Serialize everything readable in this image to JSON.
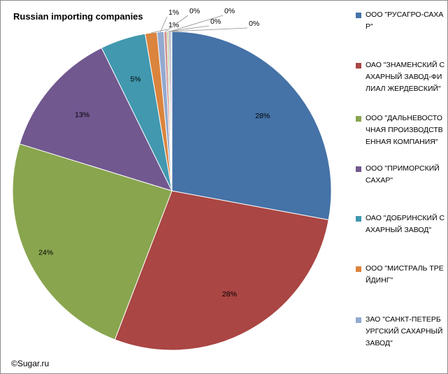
{
  "title": "Russian importing companies",
  "copyright": "©Sugar.ru",
  "chart_data": {
    "type": "pie",
    "title": "Russian importing companies",
    "slices": [
      {
        "label": "ООО \"РУСАГРО-САХАР\"",
        "value": 28,
        "data_label": "28%",
        "color": "#4572A7",
        "in_legend": true
      },
      {
        "label": "ОАО \"ЗНАМЕНСКИЙ САХАРНЫЙ ЗАВОД-ФИЛИАЛ ЖЕРДЕВСКИЙ\"",
        "value": 28,
        "data_label": "28%",
        "color": "#AA4643",
        "in_legend": true
      },
      {
        "label": "ООО \"ДАЛЬНЕВОСТОЧНАЯ ПРОИЗВОДСТВЕННАЯ КОМПАНИЯ\"",
        "value": 24,
        "data_label": "24%",
        "color": "#89A54E",
        "in_legend": true
      },
      {
        "label": "ООО \"ПРИМОРСКИЙ САХАР\"",
        "value": 13,
        "data_label": "13%",
        "color": "#71588F",
        "in_legend": true
      },
      {
        "label": "ОАО \"ДОБРИНСКИЙ САХАРНЫЙ ЗАВОД\"",
        "value": 4.6,
        "data_label": "5%",
        "color": "#4198AF",
        "in_legend": true
      },
      {
        "label": "ООО \"МИСТРАЛЬ ТРЕЙДИНГ\"",
        "value": 1.2,
        "data_label": "1%",
        "color": "#DB843D",
        "in_legend": true
      },
      {
        "label": "ЗАО \"САНКТ-ПЕТЕРБУРГСКИЙ САХАРНЫЙ ЗАВОД\"",
        "value": 0.7,
        "data_label": "1%",
        "color": "#93A9CF",
        "in_legend": true
      },
      {
        "label": "",
        "value": 0.3,
        "data_label": "0%",
        "color": "#D19392",
        "in_legend": false
      },
      {
        "label": "",
        "value": 0.2,
        "data_label": "0%",
        "color": "#B9CD96",
        "in_legend": false
      },
      {
        "label": "",
        "value": 0.2,
        "data_label": "0%",
        "color": "#A99BBD",
        "in_legend": false
      },
      {
        "label": "",
        "value": 0.1,
        "data_label": "0%",
        "color": "#91C3D5",
        "in_legend": false
      }
    ],
    "legend_position": "right"
  }
}
